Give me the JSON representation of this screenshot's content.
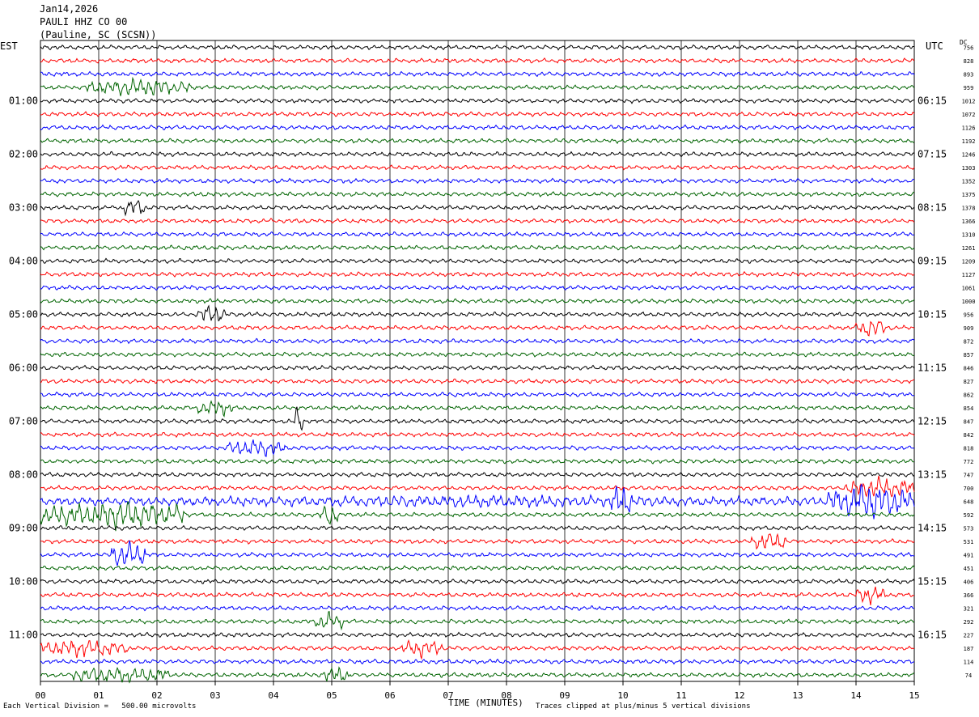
{
  "header": {
    "date": "Jan14,2026",
    "station": "PAULI HHZ CO 00",
    "location": "(Pauline, SC (SCSN))"
  },
  "labels": {
    "left_tz": "EST",
    "right_tz": "UTC",
    "dc": "DC",
    "xlabel": "TIME (MINUTES)",
    "scale_note": "Each Vertical Division =   500.00 microvolts",
    "clip_note": "Traces clipped at plus/minus 5 vertical divisions"
  },
  "colors": {
    "trace_cycle": [
      "#000000",
      "#ff0000",
      "#0000ff",
      "#006400"
    ],
    "grid": "#000000",
    "background": "#ffffff"
  },
  "chart_data": {
    "type": "line",
    "xlabel": "TIME (MINUTES)",
    "xlim": [
      0,
      15
    ],
    "x_ticks": [
      "00",
      "01",
      "02",
      "03",
      "04",
      "05",
      "06",
      "07",
      "08",
      "09",
      "10",
      "11",
      "12",
      "13",
      "14",
      "15"
    ],
    "left_hour_labels": [
      {
        "row": 4,
        "label": "01:00"
      },
      {
        "row": 8,
        "label": "02:00"
      },
      {
        "row": 12,
        "label": "03:00"
      },
      {
        "row": 16,
        "label": "04:00"
      },
      {
        "row": 20,
        "label": "05:00"
      },
      {
        "row": 24,
        "label": "06:00"
      },
      {
        "row": 28,
        "label": "07:00"
      },
      {
        "row": 32,
        "label": "08:00"
      },
      {
        "row": 36,
        "label": "09:00"
      },
      {
        "row": 40,
        "label": "10:00"
      },
      {
        "row": 44,
        "label": "11:00"
      }
    ],
    "right_hour_labels": [
      {
        "row": 4,
        "label": "06:15"
      },
      {
        "row": 8,
        "label": "07:15"
      },
      {
        "row": 12,
        "label": "08:15"
      },
      {
        "row": 16,
        "label": "09:15"
      },
      {
        "row": 20,
        "label": "10:15"
      },
      {
        "row": 24,
        "label": "11:15"
      },
      {
        "row": 28,
        "label": "12:15"
      },
      {
        "row": 32,
        "label": "13:15"
      },
      {
        "row": 36,
        "label": "14:15"
      },
      {
        "row": 40,
        "label": "15:15"
      },
      {
        "row": 44,
        "label": "16:15"
      }
    ],
    "dc_offsets": [
      "756",
      "828",
      "893",
      "959",
      "1012",
      "1072",
      "1126",
      "1192",
      "1246",
      "1303",
      "1352",
      "1375",
      "1378",
      "1366",
      "1310",
      "1261",
      "1209",
      "1127",
      "1061",
      "1000",
      "956",
      "909",
      "872",
      "857",
      "846",
      "827",
      "862",
      "854",
      "847",
      "842",
      "818",
      "772",
      "747",
      "700",
      "648",
      "592",
      "573",
      "531",
      "491",
      "451",
      "406",
      "366",
      "321",
      "292",
      "227",
      "187",
      "114",
      "74"
    ],
    "rows": 48,
    "noise_amplitude": 0.35,
    "events": [
      {
        "row": 3,
        "start_min": 0.8,
        "end_min": 2.6,
        "amp": 1.6
      },
      {
        "row": 12,
        "start_min": 1.4,
        "end_min": 1.8,
        "amp": 1.8
      },
      {
        "row": 20,
        "start_min": 2.7,
        "end_min": 3.2,
        "amp": 1.7
      },
      {
        "row": 21,
        "start_min": 14.0,
        "end_min": 14.5,
        "amp": 1.8
      },
      {
        "row": 27,
        "start_min": 2.7,
        "end_min": 3.3,
        "amp": 1.5
      },
      {
        "row": 28,
        "start_min": 4.35,
        "end_min": 4.5,
        "amp": 3.0
      },
      {
        "row": 30,
        "start_min": 3.2,
        "end_min": 4.2,
        "amp": 1.6
      },
      {
        "row": 33,
        "start_min": 13.8,
        "end_min": 15.0,
        "amp": 1.8
      },
      {
        "row": 34,
        "start_min": 0.0,
        "end_min": 15.0,
        "amp": 1.0
      },
      {
        "row": 34,
        "start_min": 9.8,
        "end_min": 10.2,
        "amp": 3.0
      },
      {
        "row": 34,
        "start_min": 13.5,
        "end_min": 15.0,
        "amp": 3.0
      },
      {
        "row": 35,
        "start_min": 0.0,
        "end_min": 2.5,
        "amp": 2.4
      },
      {
        "row": 35,
        "start_min": 4.8,
        "end_min": 5.1,
        "amp": 2.2
      },
      {
        "row": 37,
        "start_min": 12.2,
        "end_min": 12.8,
        "amp": 1.8
      },
      {
        "row": 38,
        "start_min": 1.2,
        "end_min": 1.8,
        "amp": 2.6
      },
      {
        "row": 41,
        "start_min": 14.0,
        "end_min": 14.5,
        "amp": 1.6
      },
      {
        "row": 43,
        "start_min": 4.7,
        "end_min": 5.2,
        "amp": 1.6
      },
      {
        "row": 45,
        "start_min": 0.0,
        "end_min": 1.5,
        "amp": 1.6
      },
      {
        "row": 45,
        "start_min": 6.2,
        "end_min": 6.9,
        "amp": 1.6
      },
      {
        "row": 47,
        "start_min": 0.5,
        "end_min": 2.2,
        "amp": 1.5
      },
      {
        "row": 47,
        "start_min": 4.8,
        "end_min": 5.3,
        "amp": 1.5
      }
    ]
  }
}
